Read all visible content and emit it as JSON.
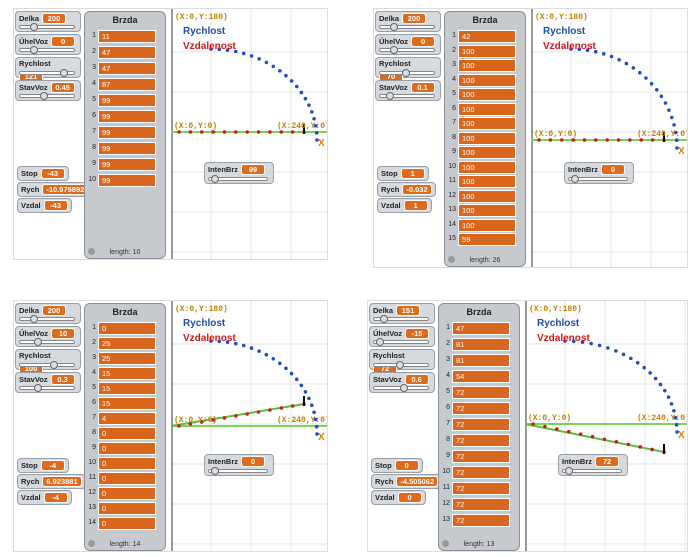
{
  "panels": [
    {
      "sliders": [
        {
          "label": "Delka",
          "value": 200
        },
        {
          "label": "ÚhelVoz",
          "value": 0
        },
        {
          "label": "Rychlost",
          "value": 121
        },
        {
          "label": "StavVoz",
          "value": 0.45
        }
      ],
      "monitors": [
        {
          "label": "Stop",
          "value": -43
        },
        {
          "label": "Rych",
          "value": -10.975892
        },
        {
          "label": "Vzdal",
          "value": -43
        }
      ],
      "list": {
        "title": "Brzda",
        "indices": [
          1,
          2,
          3,
          4,
          5,
          6,
          7,
          8,
          9,
          10
        ],
        "items": [
          11,
          47,
          47,
          87,
          99,
          99,
          99,
          99,
          99,
          99
        ],
        "length": "length: 10"
      },
      "inten": {
        "label": "IntenBrz",
        "value": 99
      },
      "stage": {
        "top_label": "(X:0,Y:180)",
        "legend": [
          "Rychlost",
          "Vzdalenost"
        ],
        "origin_label": "(X:0,Y:0)",
        "end_label": "(X:240,Y:0)",
        "x_label": "X"
      }
    },
    {
      "sliders": [
        {
          "label": "Delka",
          "value": 200
        },
        {
          "label": "ÚhelVoz",
          "value": 0
        },
        {
          "label": "Rychlost",
          "value": 70
        },
        {
          "label": "StavVoz",
          "value": 0.1
        }
      ],
      "monitors": [
        {
          "label": "Stop",
          "value": 1
        },
        {
          "label": "Rych",
          "value": -0.032
        },
        {
          "label": "Vzdal",
          "value": 1
        }
      ],
      "list": {
        "title": "Brzda",
        "indices": [
          1,
          2,
          3,
          4,
          5,
          6,
          7,
          8,
          9,
          10,
          11,
          12,
          13,
          14,
          15
        ],
        "items": [
          42,
          100,
          100,
          100,
          100,
          100,
          100,
          100,
          100,
          100,
          100,
          100,
          100,
          100,
          59
        ],
        "length": "length: 26"
      },
      "inten": {
        "label": "IntenBrz",
        "value": 0
      },
      "stage": {
        "top_label": "(X:0,Y:180)",
        "legend": [
          "Rychlost",
          "Vzdalenost"
        ],
        "origin_label": "(X:0,Y:0)",
        "end_label": "(X:240,Y:0)",
        "x_label": "X"
      }
    },
    {
      "sliders": [
        {
          "label": "Delka",
          "value": 200
        },
        {
          "label": "ÚhelVoz",
          "value": 10
        },
        {
          "label": "Rychlost",
          "value": 100
        },
        {
          "label": "StavVoz",
          "value": 0.3
        }
      ],
      "monitors": [
        {
          "label": "Stop",
          "value": -4
        },
        {
          "label": "Rych",
          "value": 6.923881
        },
        {
          "label": "Vzdal",
          "value": -4
        }
      ],
      "list": {
        "title": "Brzda",
        "indices": [
          1,
          2,
          3,
          4,
          5,
          6,
          7,
          8,
          9,
          10,
          11,
          12,
          13,
          14
        ],
        "items": [
          0,
          25,
          25,
          15,
          15,
          15,
          4,
          0,
          0,
          0,
          0,
          0,
          0,
          0
        ],
        "length": "length: 14"
      },
      "inten": {
        "label": "IntenBrz",
        "value": 0
      },
      "stage": {
        "top_label": "(X:0,Y:180)",
        "legend": [
          "Rychlost",
          "Vzdalenost"
        ],
        "origin_label": "(X:0,Y:0)",
        "end_label": "(X:240,Y:0)",
        "x_label": "X"
      }
    },
    {
      "sliders": [
        {
          "label": "Delka",
          "value": 151
        },
        {
          "label": "ÚhelVoz",
          "value": -15
        },
        {
          "label": "Rychlost",
          "value": 72
        },
        {
          "label": "StavVoz",
          "value": 0.6
        }
      ],
      "monitors": [
        {
          "label": "Stop",
          "value": 0
        },
        {
          "label": "Rych",
          "value": -4.505062
        },
        {
          "label": "Vzdal",
          "value": 0
        }
      ],
      "list": {
        "title": "Brzda",
        "indices": [
          1,
          2,
          3,
          4,
          5,
          6,
          7,
          8,
          9,
          10,
          11,
          12,
          13
        ],
        "items": [
          47,
          81,
          81,
          54,
          72,
          72,
          72,
          72,
          72,
          72,
          72,
          72,
          72
        ],
        "length": "length: 13"
      },
      "inten": {
        "label": "IntenBrz",
        "value": 72
      },
      "stage": {
        "top_label": "(X:0,Y:180)",
        "legend": [
          "Rychlost",
          "Vzdalenost"
        ],
        "origin_label": "(X:0,Y:0)",
        "end_label": "(X:240,Y:0)",
        "x_label": "X"
      }
    }
  ]
}
